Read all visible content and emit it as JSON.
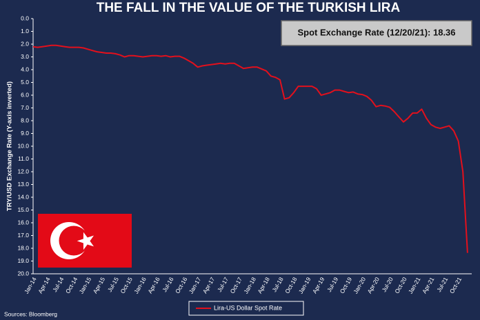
{
  "chart_data": {
    "type": "line",
    "title": "THE FALL IN THE VALUE OF THE TURKISH LIRA",
    "ylabel": "TRY/USD Exchange Rate (Y-axis inverted)",
    "annotation": "Spot Exchange Rate (12/20/21): 18.36",
    "source": "Sources: Bloomberg",
    "y_inverted": true,
    "grid": false,
    "legend": "bottom",
    "x": [
      "Jan-14",
      null,
      null,
      "Apr-14",
      null,
      null,
      "Jul-14",
      null,
      null,
      "Oct-14",
      null,
      null,
      "Jan-15",
      null,
      null,
      "Apr-15",
      null,
      null,
      "Jul-15",
      null,
      null,
      "Oct-15",
      null,
      null,
      "Jan-16",
      null,
      null,
      "Apr-16",
      null,
      null,
      "Jul-16",
      null,
      null,
      "Oct-16",
      null,
      null,
      "Jan-17",
      null,
      null,
      "Apr-17",
      null,
      null,
      "Jul-17",
      null,
      null,
      "Oct-17",
      null,
      null,
      "Jan-18",
      null,
      null,
      "Apr-18",
      null,
      null,
      "Jul-18",
      null,
      null,
      "Oct-18",
      null,
      null,
      "Jan-19",
      null,
      null,
      "Apr-19",
      null,
      null,
      "Jul-19",
      null,
      null,
      "Oct-19",
      null,
      null,
      "Jan-20",
      null,
      null,
      "Apr-20",
      null,
      null,
      "Jul-20",
      null,
      null,
      "Oct-20",
      null,
      null,
      "Jan-21",
      null,
      null,
      "Apr-21",
      null,
      null,
      "Jul-21",
      null,
      null,
      "Oct-21",
      null,
      null
    ],
    "series": [
      {
        "name": "Lira-US Dollar Spot Rate",
        "color": "#e3101c",
        "values": [
          2.2,
          2.25,
          2.2,
          2.15,
          2.1,
          2.1,
          2.15,
          2.2,
          2.25,
          2.25,
          2.25,
          2.3,
          2.4,
          2.5,
          2.6,
          2.65,
          2.7,
          2.7,
          2.75,
          2.85,
          3.0,
          2.9,
          2.9,
          2.95,
          3.0,
          2.95,
          2.9,
          2.9,
          2.95,
          2.9,
          3.0,
          2.95,
          2.95,
          3.1,
          3.3,
          3.5,
          3.8,
          3.7,
          3.65,
          3.6,
          3.55,
          3.5,
          3.55,
          3.5,
          3.5,
          3.7,
          3.9,
          3.85,
          3.8,
          3.8,
          3.95,
          4.1,
          4.5,
          4.6,
          4.8,
          6.3,
          6.2,
          5.8,
          5.3,
          5.3,
          5.3,
          5.3,
          5.5,
          6.0,
          5.9,
          5.8,
          5.6,
          5.6,
          5.7,
          5.8,
          5.75,
          5.9,
          5.95,
          6.1,
          6.4,
          6.9,
          6.8,
          6.85,
          6.95,
          7.3,
          7.7,
          8.1,
          7.8,
          7.4,
          7.4,
          7.1,
          7.8,
          8.3,
          8.5,
          8.6,
          8.5,
          8.4,
          8.8,
          9.6,
          12.0,
          18.36
        ]
      }
    ],
    "ylim": [
      0,
      20
    ],
    "yticks": [
      {
        "value": 0,
        "label": "0.0"
      },
      {
        "value": 1,
        "label": "1.0"
      },
      {
        "value": 2,
        "label": "2.0"
      },
      {
        "value": 3,
        "label": "3.0"
      },
      {
        "value": 4,
        "label": "4.0"
      },
      {
        "value": 5,
        "label": "5.0"
      },
      {
        "value": 6,
        "label": "6.0"
      },
      {
        "value": 7,
        "label": "7.0"
      },
      {
        "value": 8,
        "label": "8.0"
      },
      {
        "value": 9,
        "label": "9.0"
      },
      {
        "value": 10,
        "label": "10.0"
      },
      {
        "value": 11,
        "label": "11.0"
      },
      {
        "value": 12,
        "label": "12.0"
      },
      {
        "value": 13,
        "label": "13.0"
      },
      {
        "value": 14,
        "label": "14.0"
      },
      {
        "value": 15,
        "label": "15.0"
      },
      {
        "value": 16,
        "label": "16.0"
      },
      {
        "value": 17,
        "label": "17.0"
      },
      {
        "value": 18,
        "label": "18.0"
      },
      {
        "value": 19,
        "label": "19.0"
      },
      {
        "value": 20,
        "label": "20.0"
      }
    ]
  }
}
